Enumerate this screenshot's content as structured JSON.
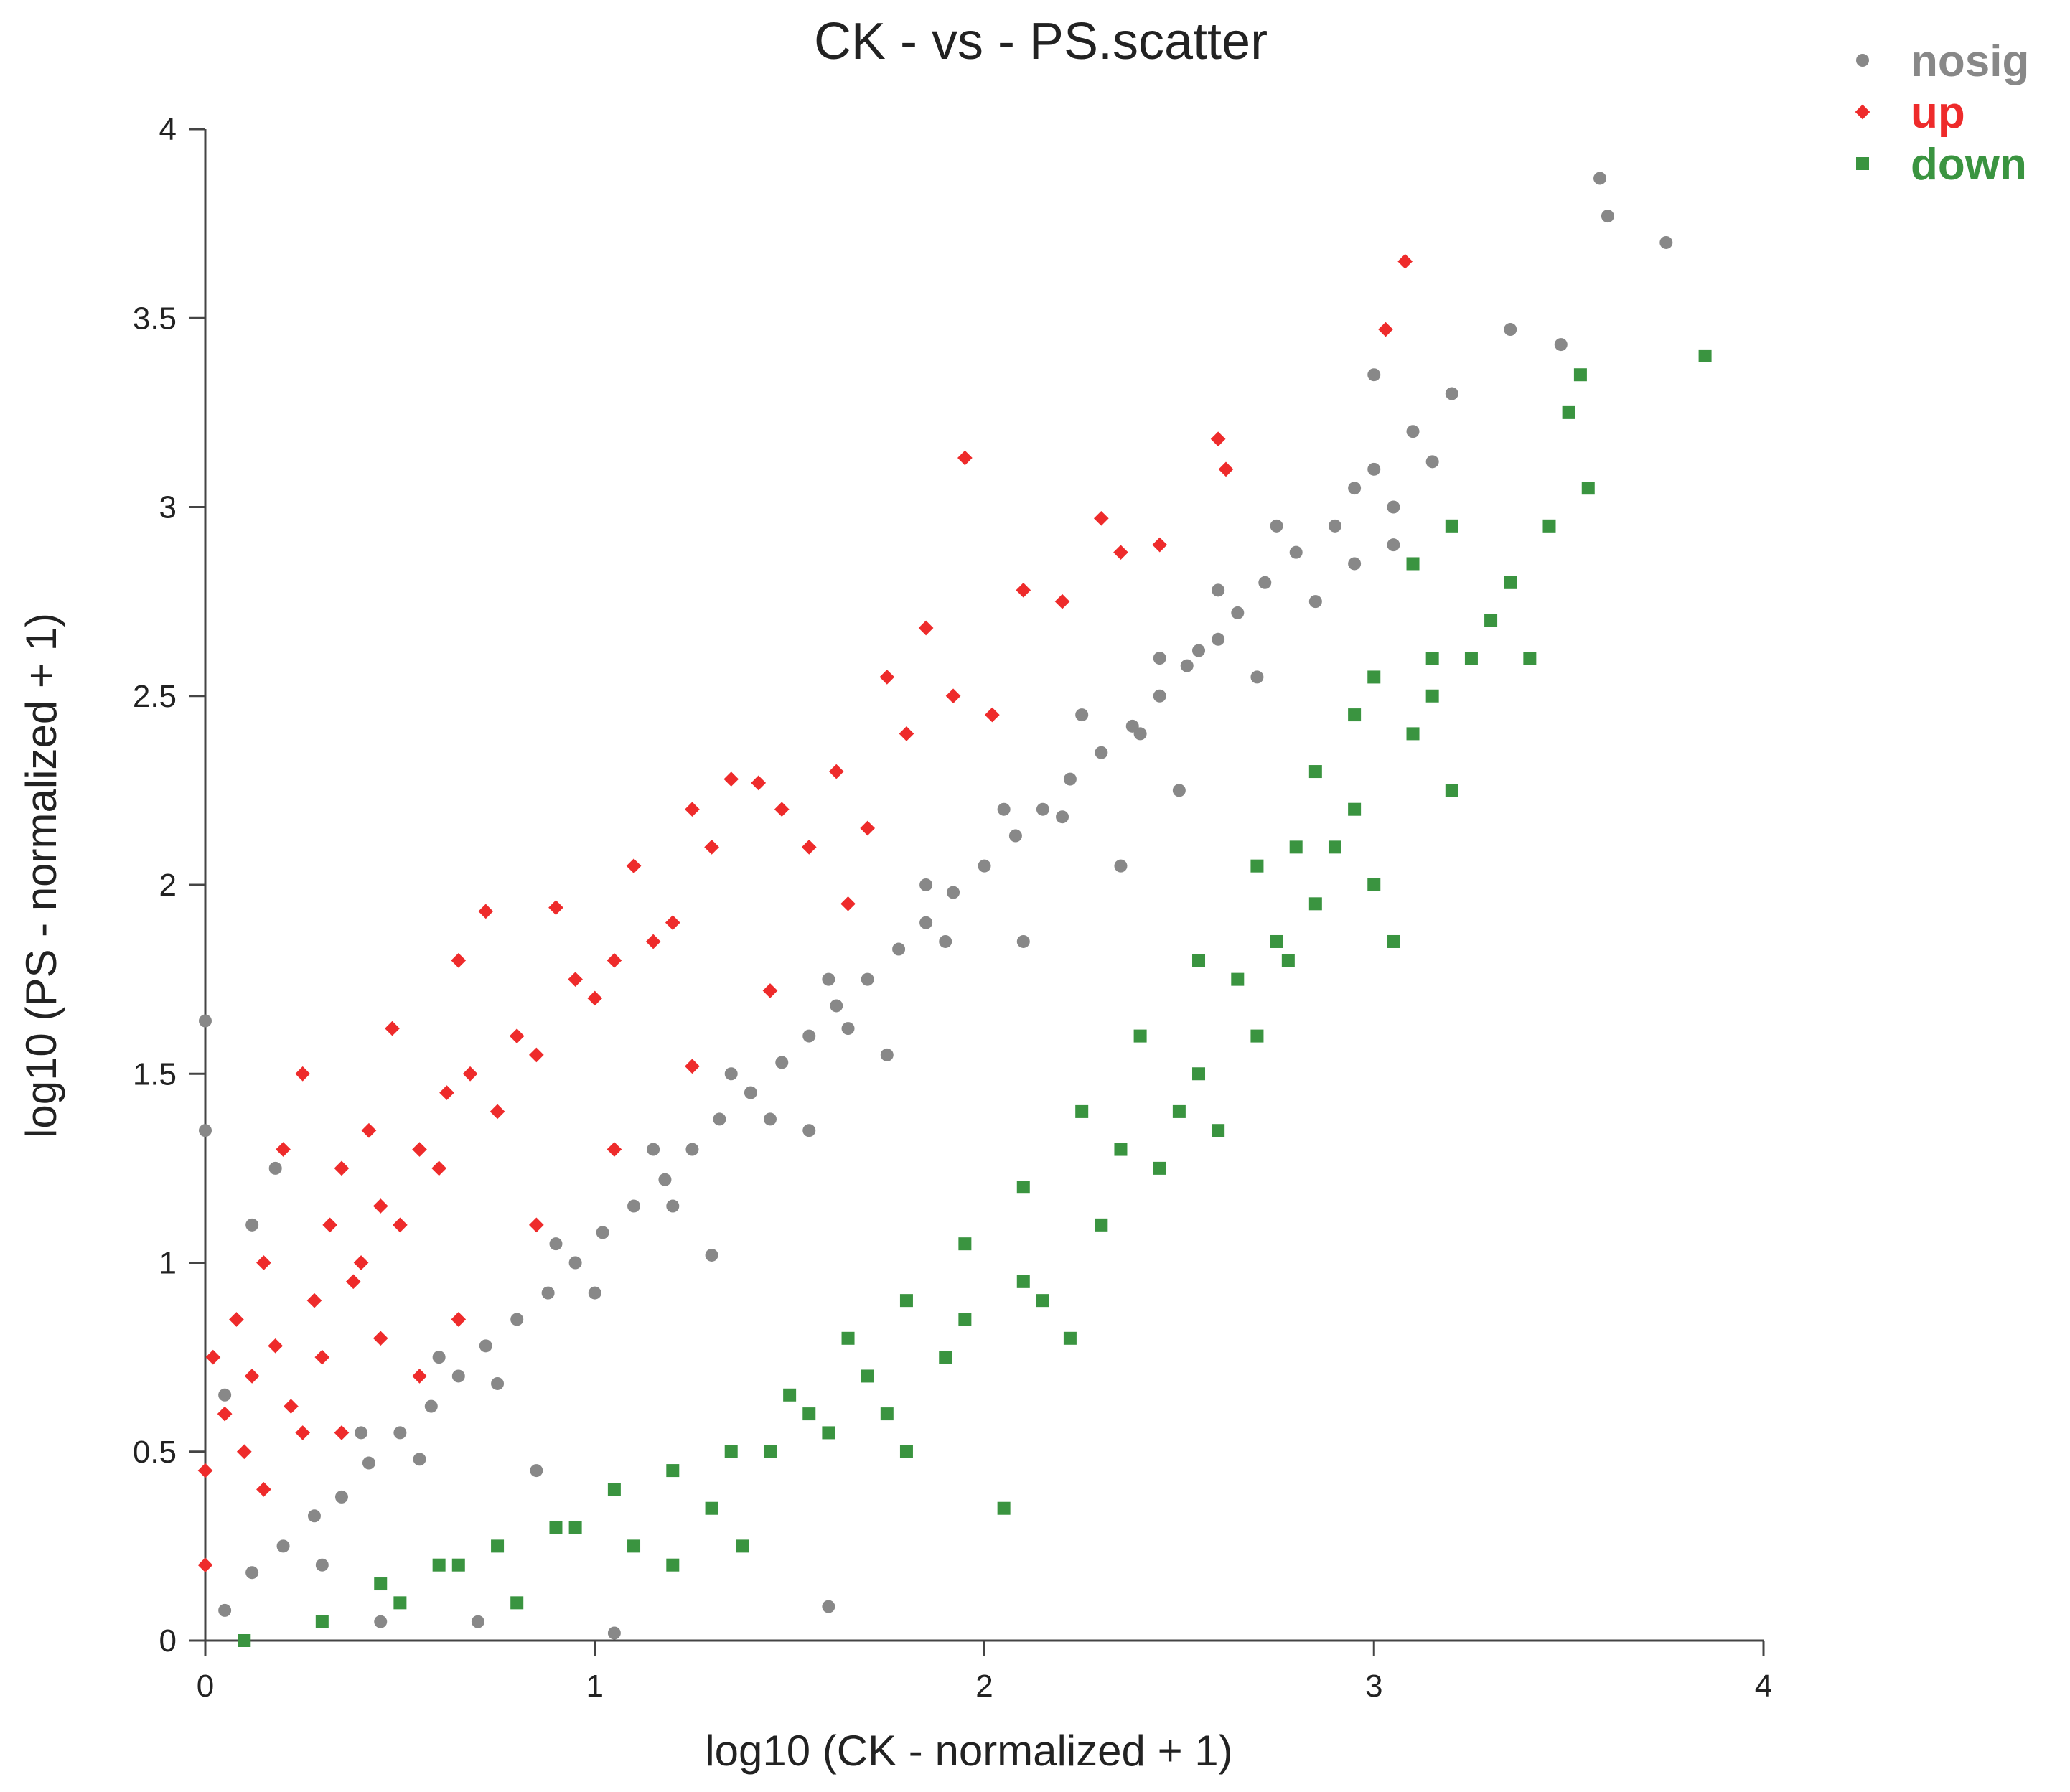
{
  "chart_data": {
    "type": "scatter",
    "title": "CK - vs - PS.scatter",
    "xlabel": "log10  (CK - normalized + 1)",
    "ylabel": "log10  (PS - normalized + 1)",
    "xlim": [
      0,
      4
    ],
    "ylim": [
      0,
      4
    ],
    "x_ticks": [
      "0",
      "1",
      "2",
      "3",
      "4"
    ],
    "y_ticks": [
      "0",
      "0.5",
      "1",
      "1.5",
      "2",
      "2.5",
      "3",
      "3.5",
      "4"
    ],
    "grid": false,
    "legend_position": "top-right",
    "series": [
      {
        "name": "nosig",
        "color": "#888888",
        "marker": "circle",
        "points": [
          [
            0.05,
            0.08
          ],
          [
            0.12,
            0.18
          ],
          [
            0.2,
            0.25
          ],
          [
            0.28,
            0.33
          ],
          [
            0.35,
            0.38
          ],
          [
            0.42,
            0.47
          ],
          [
            0.5,
            0.55
          ],
          [
            0.58,
            0.62
          ],
          [
            0.65,
            0.7
          ],
          [
            0.72,
            0.78
          ],
          [
            0.8,
            0.85
          ],
          [
            0.88,
            0.92
          ],
          [
            0.95,
            1.0
          ],
          [
            1.02,
            1.08
          ],
          [
            1.1,
            1.15
          ],
          [
            1.18,
            1.22
          ],
          [
            1.25,
            1.3
          ],
          [
            1.32,
            1.38
          ],
          [
            1.4,
            1.45
          ],
          [
            1.48,
            1.53
          ],
          [
            1.55,
            1.6
          ],
          [
            1.62,
            1.68
          ],
          [
            1.7,
            1.75
          ],
          [
            1.78,
            1.83
          ],
          [
            1.85,
            1.9
          ],
          [
            1.92,
            1.98
          ],
          [
            2.0,
            2.05
          ],
          [
            2.08,
            2.13
          ],
          [
            2.15,
            2.2
          ],
          [
            2.22,
            2.28
          ],
          [
            2.3,
            2.35
          ],
          [
            2.38,
            2.42
          ],
          [
            2.45,
            2.5
          ],
          [
            2.52,
            2.58
          ],
          [
            2.6,
            2.65
          ],
          [
            2.65,
            2.72
          ],
          [
            2.72,
            2.8
          ],
          [
            2.8,
            2.88
          ],
          [
            2.9,
            2.95
          ],
          [
            3.0,
            3.1
          ],
          [
            3.05,
            3.0
          ],
          [
            3.1,
            3.2
          ],
          [
            3.2,
            3.3
          ],
          [
            3.35,
            3.47
          ],
          [
            3.48,
            3.43
          ],
          [
            3.58,
            3.87
          ],
          [
            3.6,
            3.77
          ],
          [
            3.75,
            3.7
          ],
          [
            3.0,
            3.35
          ],
          [
            3.15,
            3.12
          ],
          [
            0.0,
            1.64
          ],
          [
            0.0,
            1.35
          ],
          [
            0.05,
            0.65
          ],
          [
            0.18,
            1.25
          ],
          [
            0.12,
            1.1
          ],
          [
            1.6,
            0.09
          ],
          [
            1.05,
            0.02
          ],
          [
            0.85,
            0.45
          ],
          [
            1.3,
            1.02
          ],
          [
            1.55,
            1.35
          ],
          [
            1.75,
            1.55
          ],
          [
            2.1,
            1.85
          ],
          [
            2.35,
            2.05
          ],
          [
            2.5,
            2.25
          ],
          [
            2.7,
            2.55
          ],
          [
            2.85,
            2.75
          ],
          [
            2.95,
            2.85
          ],
          [
            0.3,
            0.2
          ],
          [
            0.55,
            0.48
          ],
          [
            0.75,
            0.68
          ],
          [
            1.0,
            0.92
          ],
          [
            1.2,
            1.15
          ],
          [
            1.45,
            1.38
          ],
          [
            1.65,
            1.62
          ],
          [
            1.9,
            1.85
          ],
          [
            2.2,
            2.18
          ],
          [
            2.4,
            2.4
          ],
          [
            2.55,
            2.62
          ],
          [
            0.4,
            0.55
          ],
          [
            0.6,
            0.75
          ],
          [
            0.9,
            1.05
          ],
          [
            1.15,
            1.3
          ],
          [
            1.35,
            1.5
          ],
          [
            1.6,
            1.75
          ],
          [
            1.85,
            2.0
          ],
          [
            2.05,
            2.2
          ],
          [
            2.25,
            2.45
          ],
          [
            2.45,
            2.6
          ],
          [
            2.6,
            2.78
          ],
          [
            2.75,
            2.95
          ],
          [
            0.45,
            0.05
          ],
          [
            0.7,
            0.05
          ],
          [
            2.95,
            3.05
          ],
          [
            3.05,
            2.9
          ]
        ]
      },
      {
        "name": "up",
        "color": "#ee2b2b",
        "marker": "diamond",
        "points": [
          [
            0.0,
            0.2
          ],
          [
            0.0,
            0.45
          ],
          [
            0.02,
            0.75
          ],
          [
            0.05,
            0.6
          ],
          [
            0.08,
            0.85
          ],
          [
            0.1,
            0.5
          ],
          [
            0.12,
            0.7
          ],
          [
            0.15,
            1.0
          ],
          [
            0.18,
            0.78
          ],
          [
            0.2,
            1.3
          ],
          [
            0.22,
            0.62
          ],
          [
            0.25,
            1.5
          ],
          [
            0.28,
            0.9
          ],
          [
            0.3,
            0.75
          ],
          [
            0.32,
            1.1
          ],
          [
            0.35,
            1.25
          ],
          [
            0.38,
            0.95
          ],
          [
            0.4,
            1.0
          ],
          [
            0.42,
            1.35
          ],
          [
            0.45,
            1.15
          ],
          [
            0.48,
            1.62
          ],
          [
            0.5,
            1.1
          ],
          [
            0.55,
            1.3
          ],
          [
            0.6,
            1.25
          ],
          [
            0.62,
            1.45
          ],
          [
            0.65,
            1.8
          ],
          [
            0.68,
            1.5
          ],
          [
            0.72,
            1.93
          ],
          [
            0.75,
            1.4
          ],
          [
            0.8,
            1.6
          ],
          [
            0.85,
            1.55
          ],
          [
            0.9,
            1.94
          ],
          [
            0.95,
            1.75
          ],
          [
            1.0,
            1.7
          ],
          [
            1.05,
            1.8
          ],
          [
            1.1,
            2.05
          ],
          [
            1.15,
            1.85
          ],
          [
            1.2,
            1.9
          ],
          [
            1.25,
            2.2
          ],
          [
            1.3,
            2.1
          ],
          [
            1.35,
            2.28
          ],
          [
            1.42,
            2.27
          ],
          [
            1.48,
            2.2
          ],
          [
            1.55,
            2.1
          ],
          [
            1.62,
            2.3
          ],
          [
            1.7,
            2.15
          ],
          [
            1.75,
            2.55
          ],
          [
            1.8,
            2.4
          ],
          [
            1.85,
            2.68
          ],
          [
            1.92,
            2.5
          ],
          [
            1.95,
            3.13
          ],
          [
            2.02,
            2.45
          ],
          [
            2.1,
            2.78
          ],
          [
            2.2,
            2.75
          ],
          [
            2.3,
            2.97
          ],
          [
            2.35,
            2.88
          ],
          [
            2.45,
            2.9
          ],
          [
            2.6,
            3.18
          ],
          [
            2.62,
            3.1
          ],
          [
            3.03,
            3.47
          ],
          [
            3.08,
            3.65
          ],
          [
            0.55,
            0.7
          ],
          [
            0.35,
            0.55
          ],
          [
            0.65,
            0.85
          ],
          [
            0.85,
            1.1
          ],
          [
            1.05,
            1.3
          ],
          [
            1.25,
            1.52
          ],
          [
            1.45,
            1.72
          ],
          [
            1.65,
            1.95
          ],
          [
            0.15,
            0.4
          ],
          [
            0.25,
            0.55
          ],
          [
            0.45,
            0.8
          ]
        ]
      },
      {
        "name": "down",
        "color": "#3a9440",
        "marker": "square",
        "points": [
          [
            0.1,
            0.0
          ],
          [
            0.3,
            0.05
          ],
          [
            0.5,
            0.1
          ],
          [
            0.65,
            0.2
          ],
          [
            0.8,
            0.1
          ],
          [
            0.95,
            0.3
          ],
          [
            1.1,
            0.25
          ],
          [
            1.2,
            0.2
          ],
          [
            1.3,
            0.35
          ],
          [
            1.38,
            0.25
          ],
          [
            1.45,
            0.5
          ],
          [
            1.55,
            0.6
          ],
          [
            1.6,
            0.55
          ],
          [
            1.7,
            0.7
          ],
          [
            1.75,
            0.6
          ],
          [
            1.8,
            0.5
          ],
          [
            1.9,
            0.75
          ],
          [
            1.95,
            0.85
          ],
          [
            2.05,
            0.35
          ],
          [
            2.1,
            0.95
          ],
          [
            2.15,
            0.9
          ],
          [
            2.22,
            0.8
          ],
          [
            2.3,
            1.1
          ],
          [
            2.35,
            1.3
          ],
          [
            2.45,
            1.25
          ],
          [
            2.5,
            1.4
          ],
          [
            2.55,
            1.5
          ],
          [
            2.6,
            1.35
          ],
          [
            2.65,
            1.75
          ],
          [
            2.7,
            1.6
          ],
          [
            2.75,
            1.85
          ],
          [
            2.78,
            1.8
          ],
          [
            2.85,
            1.95
          ],
          [
            2.9,
            2.1
          ],
          [
            2.95,
            2.2
          ],
          [
            3.0,
            2.0
          ],
          [
            3.05,
            1.85
          ],
          [
            3.1,
            2.4
          ],
          [
            3.15,
            2.5
          ],
          [
            3.2,
            2.25
          ],
          [
            3.25,
            2.6
          ],
          [
            3.3,
            2.7
          ],
          [
            3.35,
            2.8
          ],
          [
            3.4,
            2.6
          ],
          [
            3.45,
            2.95
          ],
          [
            3.5,
            3.25
          ],
          [
            3.55,
            3.05
          ],
          [
            3.53,
            3.35
          ],
          [
            3.85,
            3.4
          ],
          [
            3.0,
            2.55
          ],
          [
            2.85,
            2.3
          ],
          [
            2.7,
            2.05
          ],
          [
            2.55,
            1.8
          ],
          [
            2.4,
            1.6
          ],
          [
            2.25,
            1.4
          ],
          [
            2.1,
            1.2
          ],
          [
            1.95,
            1.05
          ],
          [
            1.8,
            0.9
          ],
          [
            1.65,
            0.8
          ],
          [
            1.5,
            0.65
          ],
          [
            1.35,
            0.5
          ],
          [
            1.2,
            0.45
          ],
          [
            1.05,
            0.4
          ],
          [
            0.9,
            0.3
          ],
          [
            0.75,
            0.25
          ],
          [
            0.6,
            0.2
          ],
          [
            0.45,
            0.15
          ],
          [
            3.1,
            2.85
          ],
          [
            3.2,
            2.95
          ],
          [
            3.15,
            2.6
          ],
          [
            2.95,
            2.45
          ],
          [
            2.8,
            2.1
          ]
        ]
      }
    ]
  }
}
